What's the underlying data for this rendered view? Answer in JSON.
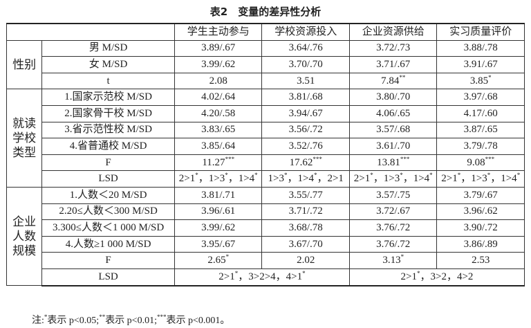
{
  "title": "表2　变量的差异性分析",
  "table": {
    "header": [
      "学生主动参与",
      "学校资源投入",
      "企业资源供给",
      "实习质量评价"
    ],
    "groups": [
      {
        "label": "性别",
        "rows": [
          [
            "男 M/SD",
            "3.89/.67",
            "3.64/.76",
            "3.72/.73",
            "3.88/.78"
          ],
          [
            "女 M/SD",
            "3.99/.62",
            "3.70/.70",
            "3.71/.67",
            "3.91/.67"
          ],
          [
            "t",
            "2.08",
            "3.51",
            "7.84**",
            "3.85*"
          ]
        ]
      },
      {
        "label": "就读学校类型",
        "rows": [
          [
            "1.国家示范校 M/SD",
            "4.02/.64",
            "3.81/.68",
            "3.80/.70",
            "3.97/.68"
          ],
          [
            "2.国家骨干校 M/SD",
            "4.20/.58",
            "3.94/.67",
            "4.06/.65",
            "4.17/.60"
          ],
          [
            "3.省示范性校 M/SD",
            "3.83/.65",
            "3.56/.72",
            "3.57/.68",
            "3.87/.65"
          ],
          [
            "4.省普通校 M/SD",
            "3.85/.64",
            "3.52/.76",
            "3.61/.70",
            "3.79/.78"
          ],
          [
            "F",
            "11.27***",
            "17.62***",
            "13.81***",
            "9.08***"
          ],
          [
            "LSD",
            "2>1*，1>3*，1>4*",
            "1>3*，1>4*，2>1",
            "2>1*，1>3*，1>4*",
            "2>1*，1>3*，1>4*"
          ]
        ]
      },
      {
        "label": "企业人数规模",
        "rows": [
          [
            "1.人数＜20 M/SD",
            "3.81/.71",
            "3.55/.77",
            "3.57/.75",
            "3.79/.67"
          ],
          [
            "2.20≤人数＜300 M/SD",
            "3.96/.61",
            "3.71/.72",
            "3.72/.67",
            "3.96/.62"
          ],
          [
            "3.300≤人数＜1 000 M/SD",
            "3.99/.62",
            "3.68/.78",
            "3.76/.72",
            "3.90/.72"
          ],
          [
            "4.人数≥1 000 M/SD",
            "3.95/.67",
            "3.67/.70",
            "3.76/.72",
            "3.86/.89"
          ],
          [
            "F",
            "2.65*",
            "2.02",
            "3.13*",
            "2.53"
          ],
          [
            "LSD",
            "2>1*，3>2>4，4>1*",
            "2>1*，3>2，4>2"
          ]
        ]
      }
    ]
  },
  "note": "注:*表示 p<0.05;**表示 p<0.01;***表示 p<0.001。"
}
